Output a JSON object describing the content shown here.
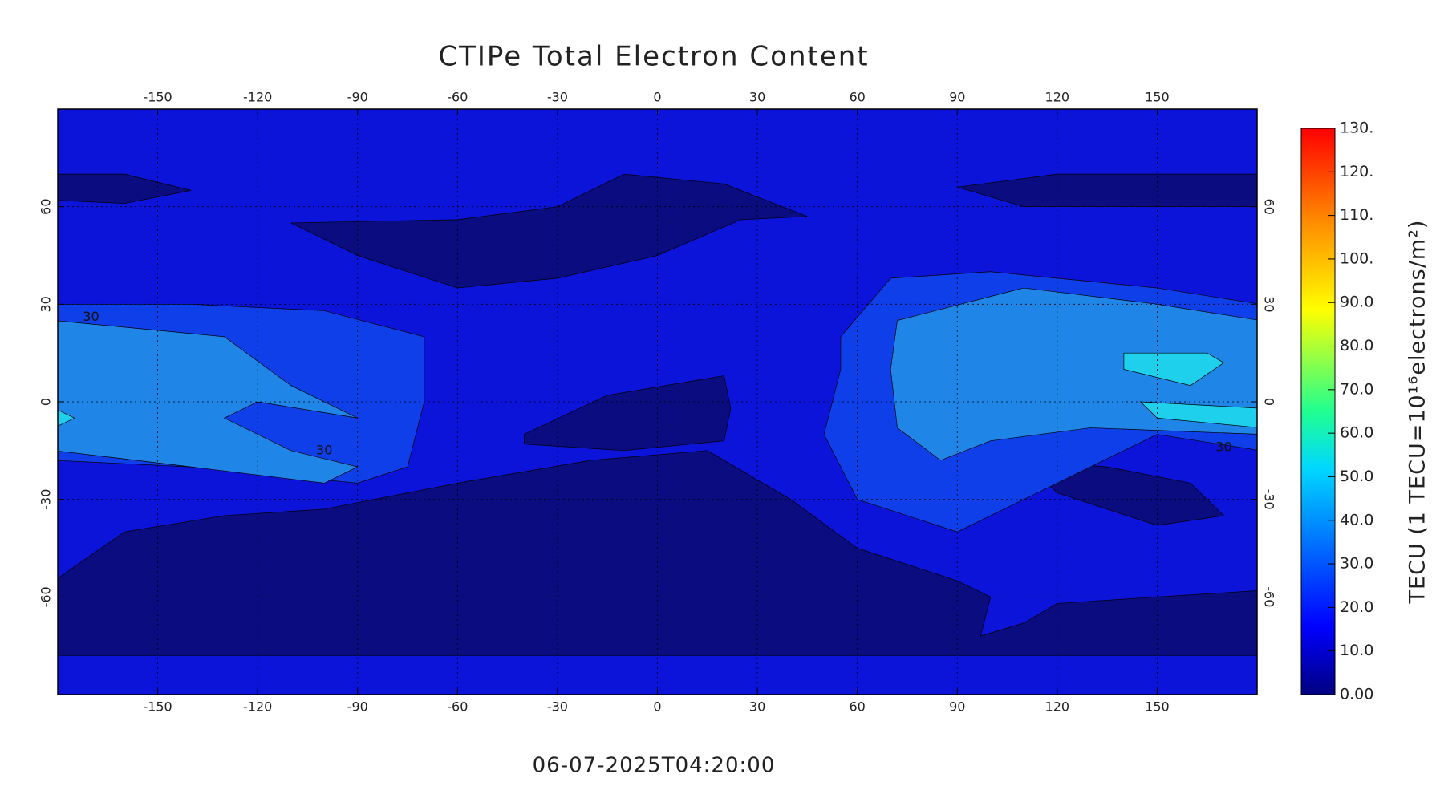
{
  "title": "CTIPe Total Electron Content",
  "timestamp": "06-07-2025T04:20:00",
  "map": {
    "xlim": [
      -180,
      180
    ],
    "ylim": [
      -90,
      90
    ],
    "xticks": [
      -150,
      -120,
      -90,
      -60,
      -30,
      0,
      30,
      60,
      90,
      120,
      150
    ],
    "yticks": [
      -60,
      -30,
      0,
      30,
      60
    ],
    "contour_labels": [
      "30",
      "30",
      "30"
    ]
  },
  "colorbar": {
    "label": "TECU (1 TECU=10¹⁶electrons/m²)",
    "clim": [
      0,
      130
    ],
    "ticks": [
      {
        "value": 0,
        "label": "0.00"
      },
      {
        "value": 10,
        "label": "10.0"
      },
      {
        "value": 20,
        "label": "20.0"
      },
      {
        "value": 30,
        "label": "30.0"
      },
      {
        "value": 40,
        "label": "40.0"
      },
      {
        "value": 50,
        "label": "50.0"
      },
      {
        "value": 60,
        "label": "60.0"
      },
      {
        "value": 70,
        "label": "70.0"
      },
      {
        "value": 80,
        "label": "80.0"
      },
      {
        "value": 90,
        "label": "90.0"
      },
      {
        "value": 100,
        "label": "100."
      },
      {
        "value": 110,
        "label": "110."
      },
      {
        "value": 120,
        "label": "120."
      },
      {
        "value": 130,
        "label": "130."
      }
    ]
  }
}
